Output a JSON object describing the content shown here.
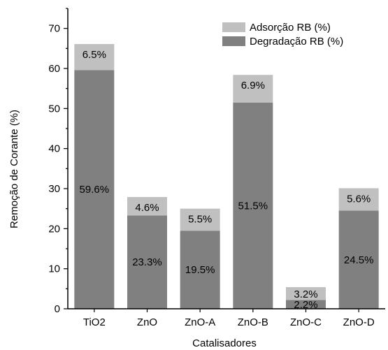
{
  "chart_data": {
    "type": "bar",
    "stacked": true,
    "title": "",
    "xlabel": "Catalisadores",
    "ylabel": "Remoção de Corante (%)",
    "ylim": [
      0,
      75
    ],
    "yticks": [
      0,
      10,
      20,
      30,
      40,
      50,
      60,
      70
    ],
    "categories": [
      "TiO2",
      "ZnO",
      "ZnO-A",
      "ZnO-B",
      "ZnO-C",
      "ZnO-D"
    ],
    "series": [
      {
        "name": "Degradação RB (%)",
        "color": "#808080",
        "values": [
          59.6,
          23.3,
          19.5,
          51.5,
          2.2,
          24.5
        ],
        "labels": [
          "59.6%",
          "23.3%",
          "19.5%",
          "51.5%",
          "2.2%",
          "24.5%"
        ]
      },
      {
        "name": "Adsorção RB (%)",
        "color": "#c0c0c0",
        "values": [
          6.5,
          4.6,
          5.5,
          6.9,
          3.2,
          5.6
        ],
        "labels": [
          "6.5%",
          "4.6%",
          "5.5%",
          "6.9%",
          "3.2%",
          "5.6%"
        ]
      }
    ],
    "legend": {
      "position": "top-right",
      "entries": [
        "Adsorção RB (%)",
        "Degradação RB (%)"
      ]
    },
    "grid": false
  }
}
